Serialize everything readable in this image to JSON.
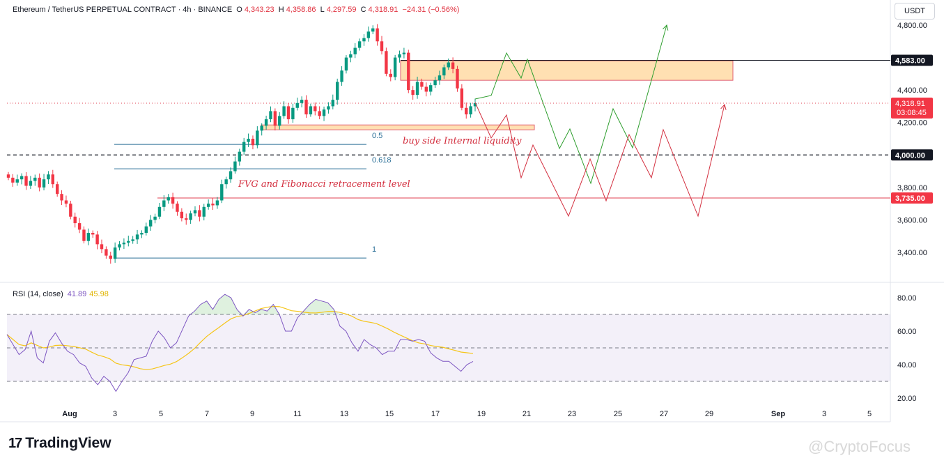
{
  "header": {
    "symbol": "Ethereum / TetherUS PERPETUAL CONTRACT · 4h · BINANCE",
    "o_label": "O",
    "o_value": "4,343.23",
    "h_label": "H",
    "h_value": "4,358.86",
    "l_label": "L",
    "l_value": "4,297.59",
    "c_label": "C",
    "c_value": "4,318.91",
    "change": "−24.31 (−0.56%)"
  },
  "currency_button": "USDT",
  "price_axis_ticks": [
    "4,800.00",
    "4,400.00",
    "4,200.00",
    "3,800.00",
    "3,600.00",
    "3,400.00"
  ],
  "price_badges": {
    "resistance": "4,583.00",
    "current_price": "4,318.91",
    "countdown": "03:08:45",
    "round_level": "4,000.00",
    "support": "3,735.00"
  },
  "annotations": {
    "fib_05": "0.5",
    "fib_0618": "0.618",
    "fib_1": "1",
    "liquidity": "buy side Internal liquidity",
    "fvg": "FVG and Fibonacci retracement level"
  },
  "rsi": {
    "title": "RSI (14, close)",
    "value": "41.89",
    "ma_value": "45.98",
    "ticks": [
      "80.00",
      "60.00",
      "40.00",
      "20.00"
    ]
  },
  "time_axis": [
    "Aug",
    "3",
    "5",
    "7",
    "9",
    "11",
    "13",
    "15",
    "17",
    "19",
    "21",
    "23",
    "25",
    "27",
    "29",
    "Sep",
    "3",
    "5"
  ],
  "brand": "TradingView",
  "watermark": "@CryptoFocus",
  "colors": {
    "up": "#089981",
    "down": "#f23645",
    "resistance_zone": "#ffe0b2",
    "rsi_line": "#7e57c2",
    "rsi_ma": "#f5c518",
    "green_path": "#2e9e2e",
    "red_path": "#d32f3f"
  },
  "chart_data": {
    "type": "candlestick",
    "timeframe": "4h",
    "y_range": [
      3300,
      4900
    ],
    "x_range": [
      "Jul 31",
      "Sep 5"
    ],
    "key_levels": [
      {
        "price": 4583,
        "label": "4,583.00"
      },
      {
        "price": 4000,
        "label": "4,000.00",
        "style": "dashed"
      },
      {
        "price": 3735,
        "label": "3,735.00"
      }
    ],
    "resistance_zone": [
      4460,
      4580
    ],
    "fvg_zone": [
      4155,
      4185
    ],
    "fibonacci": [
      {
        "level": "0.5",
        "price": 4065
      },
      {
        "level": "0.618",
        "price": 3915
      },
      {
        "level": "1",
        "price": 3365
      }
    ],
    "close": [
      3860,
      3830,
      3850,
      3870,
      3810,
      3840,
      3860,
      3800,
      3850,
      3880,
      3820,
      3760,
      3720,
      3700,
      3620,
      3580,
      3540,
      3470,
      3520,
      3510,
      3450,
      3420,
      3380,
      3360,
      3430,
      3450,
      3460,
      3470,
      3480,
      3510,
      3520,
      3560,
      3600,
      3620,
      3680,
      3720,
      3740,
      3700,
      3650,
      3610,
      3600,
      3640,
      3660,
      3620,
      3680,
      3700,
      3690,
      3720,
      3820,
      3850,
      3900,
      3960,
      4020,
      4080,
      4100,
      4060,
      4150,
      4180,
      4220,
      4270,
      4180,
      4240,
      4300,
      4220,
      4290,
      4320,
      4340,
      4250,
      4300,
      4270,
      4240,
      4280,
      4300,
      4340,
      4450,
      4520,
      4600,
      4620,
      4660,
      4700,
      4720,
      4760,
      4780,
      4700,
      4640,
      4500,
      4480,
      4600,
      4620,
      4630,
      4400,
      4370,
      4450,
      4420,
      4390,
      4430,
      4460,
      4490,
      4540,
      4570,
      4530,
      4410,
      4290,
      4250,
      4300,
      4319
    ],
    "rsi_values": [
      58,
      52,
      46,
      49,
      60,
      44,
      41,
      54,
      59,
      53,
      48,
      46,
      41,
      39,
      32,
      28,
      33,
      30,
      24,
      30,
      35,
      43,
      44,
      45,
      54,
      60,
      56,
      50,
      53,
      61,
      69,
      72,
      76,
      78,
      73,
      79,
      82,
      80,
      73,
      69,
      73,
      71,
      73,
      72,
      76,
      70,
      60,
      60,
      68,
      72,
      76,
      79,
      78,
      77,
      73,
      63,
      60,
      53,
      48,
      55,
      52,
      50,
      46,
      48,
      48,
      55,
      55,
      54,
      55,
      54,
      47,
      44,
      42,
      42,
      39,
      36,
      40,
      41.89
    ],
    "rsi_levels": [
      70,
      50,
      30
    ]
  }
}
